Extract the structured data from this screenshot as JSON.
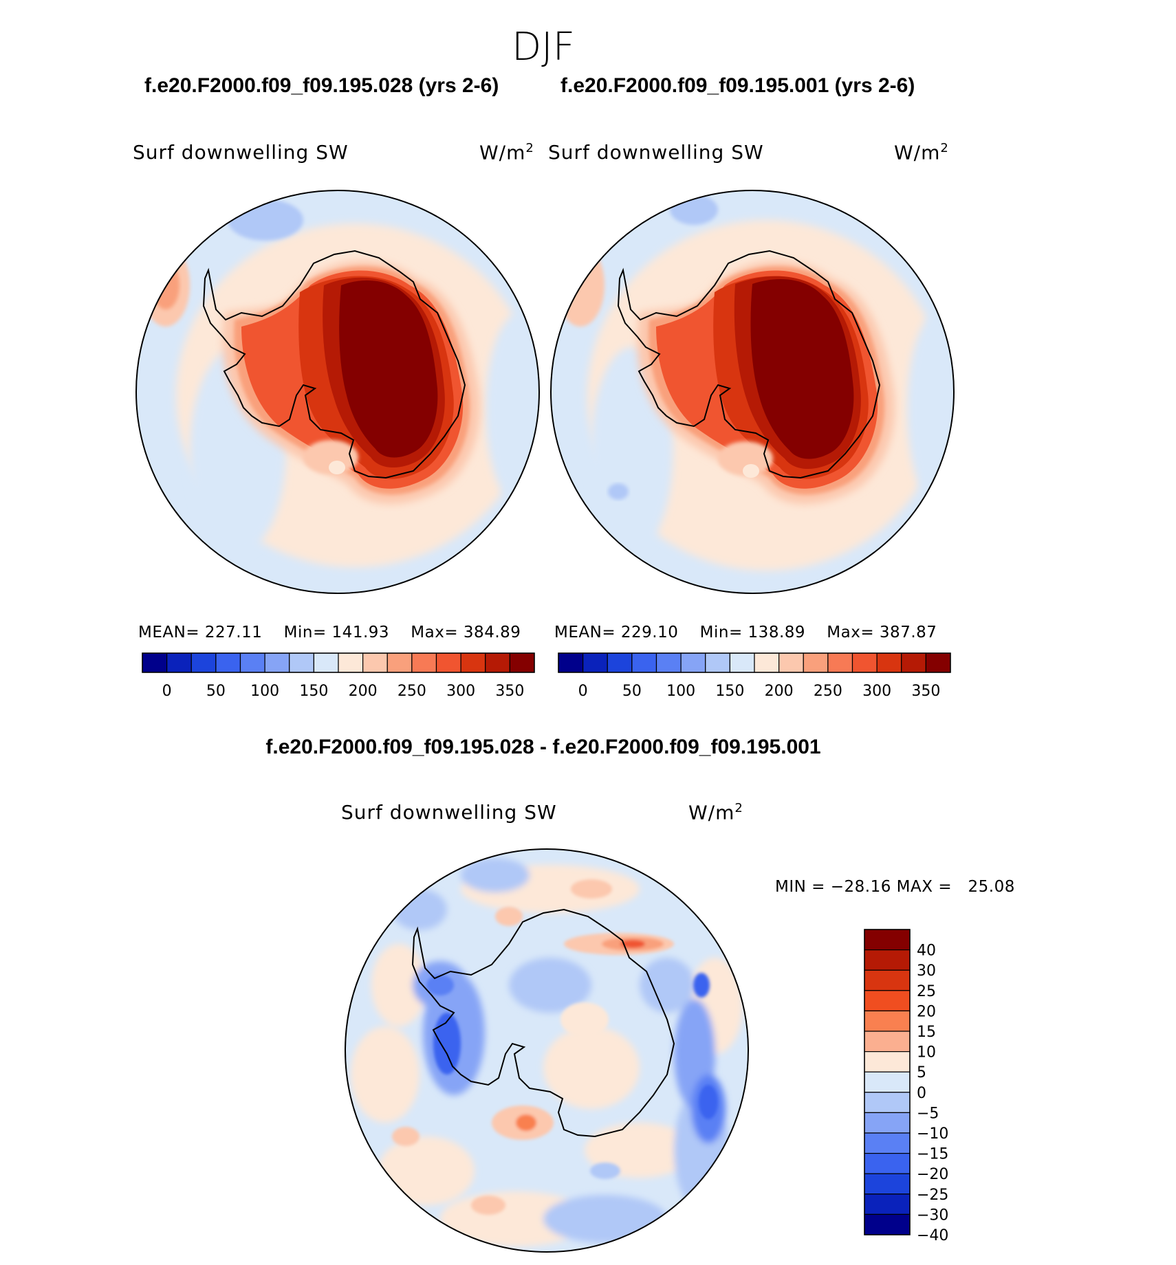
{
  "season": "DJF",
  "panels": [
    {
      "case_title": "f.e20.F2000.f09_f09.195.028 (yrs 2-6)",
      "variable": "Surf downwelling SW",
      "units_base": "W/m",
      "units_exp": "2",
      "stats": {
        "mean_label": "MEAN=",
        "mean": "227.11",
        "min_label": "Min=",
        "min": "141.93",
        "max_label": "Max=",
        "max": "384.89"
      },
      "colorbar": {
        "colors": [
          "#00008b",
          "#0a22bb",
          "#1c44dc",
          "#3a63ef",
          "#5a80f4",
          "#86a4f6",
          "#b0c8f7",
          "#d9e8f9",
          "#fde8d8",
          "#fcc8ae",
          "#f9a07c",
          "#f77a55",
          "#f05530",
          "#d83510",
          "#b51a05",
          "#840000"
        ],
        "labels": [
          "0",
          "50",
          "100",
          "150",
          "200",
          "250",
          "300",
          "350"
        ]
      }
    },
    {
      "case_title": "f.e20.F2000.f09_f09.195.001 (yrs 2-6)",
      "variable": "Surf downwelling SW",
      "units_base": "W/m",
      "units_exp": "2",
      "stats": {
        "mean_label": "MEAN=",
        "mean": "229.10",
        "min_label": "Min=",
        "min": "138.89",
        "max_label": "Max=",
        "max": "387.87"
      },
      "colorbar": {
        "colors": [
          "#00008b",
          "#0a22bb",
          "#1c44dc",
          "#3a63ef",
          "#5a80f4",
          "#86a4f6",
          "#b0c8f7",
          "#d9e8f9",
          "#fde8d8",
          "#fcc8ae",
          "#f9a07c",
          "#f77a55",
          "#f05530",
          "#d83510",
          "#b51a05",
          "#840000"
        ],
        "labels": [
          "0",
          "50",
          "100",
          "150",
          "200",
          "250",
          "300",
          "350"
        ]
      }
    }
  ],
  "difference": {
    "title": "f.e20.F2000.f09_f09.195.028 - f.e20.F2000.f09_f09.195.001",
    "variable": "Surf downwelling SW",
    "units_base": "W/m",
    "units_exp": "2",
    "stats": {
      "min_label": "MIN =",
      "min": "−28.16",
      "max_label": "MAX =",
      "max": "25.08"
    },
    "colorbar": {
      "colors": [
        "#840000",
        "#b51a05",
        "#d83510",
        "#f04e20",
        "#f98050",
        "#fbaf90",
        "#fde8d8",
        "#d9e8f9",
        "#b0c8f7",
        "#86a4f6",
        "#5a80f4",
        "#3a63ef",
        "#1c44dc",
        "#0a22bb",
        "#00008b"
      ],
      "labels": [
        "40",
        "30",
        "25",
        "20",
        "15",
        "10",
        "5",
        "0",
        "−5",
        "−10",
        "−15",
        "−20",
        "−25",
        "−30",
        "−40"
      ]
    }
  },
  "colors": {
    "ocean_low": "#d9e8f9",
    "ocean_mid": "#fde8d8",
    "continent_coast": "#f05530",
    "continent_interior": "#840000",
    "coastline": "#000000"
  }
}
